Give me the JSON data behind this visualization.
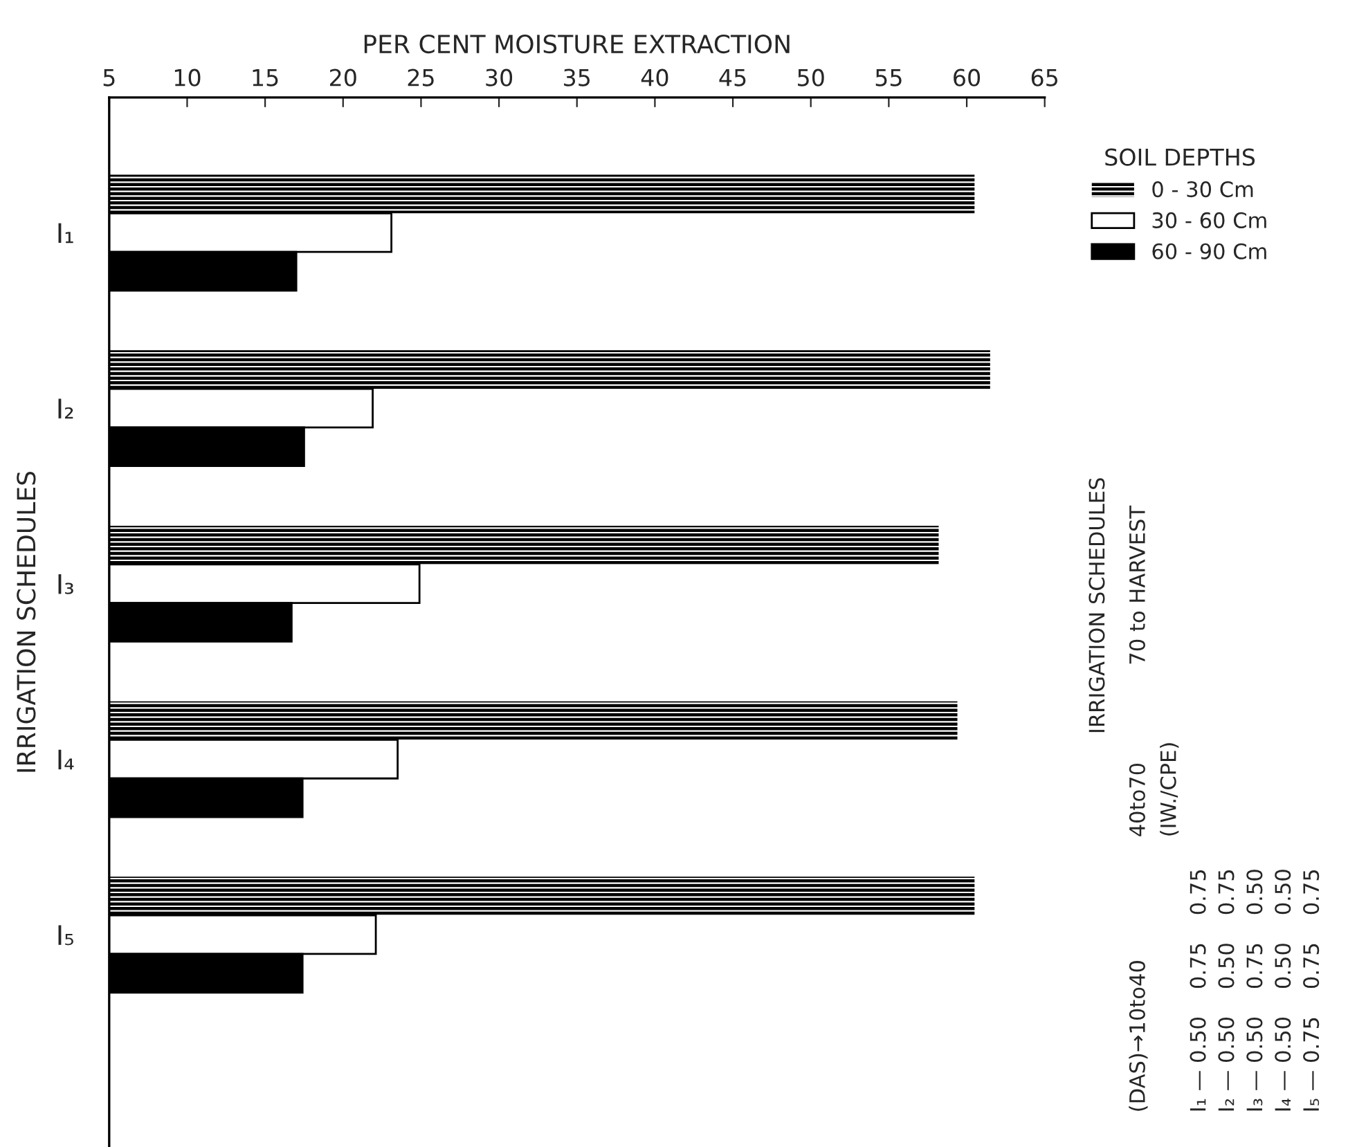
{
  "chart_data": {
    "type": "bar",
    "orientation": "horizontal",
    "xlabel": "PER CENT MOISTURE EXTRACTION",
    "ylabel": "IRRIGATION SCHEDULES",
    "categories": [
      "I₁",
      "I₂",
      "I₃",
      "I₄",
      "I₅"
    ],
    "series": [
      {
        "name": "0 - 30 Cm",
        "color": "#000000",
        "values": [
          60.5,
          61.5,
          58.2,
          59.4,
          60.5
        ]
      },
      {
        "name": "30 - 60 Cm",
        "color": "#ffffff",
        "values": [
          23.1,
          21.9,
          24.9,
          23.5,
          22.1
        ]
      },
      {
        "name": "60 - 90 Cm",
        "color": "#000000",
        "values": [
          17.0,
          17.5,
          16.7,
          17.4,
          17.4
        ]
      }
    ],
    "xlim": [
      5,
      65
    ],
    "xticks": [
      5,
      10,
      15,
      20,
      25,
      30,
      35,
      40,
      45,
      50,
      55,
      60,
      65
    ],
    "legend": "right",
    "legend_title": "SOIL DEPTHS",
    "annotations": [
      "IRRIGATION SCHEDULES",
      "(DAS)→10to40",
      "40to70",
      "70 to HARVEST",
      "(IW./CPE)",
      "I₁ — 0.50    0.75    0.75",
      "I₂ — 0.50    0.50    0.75",
      "I₃ — 0.50    0.75    0.50",
      "I₄ — 0.50    0.50    0.50",
      "I₅ — 0.75    0.75    0.75"
    ]
  }
}
